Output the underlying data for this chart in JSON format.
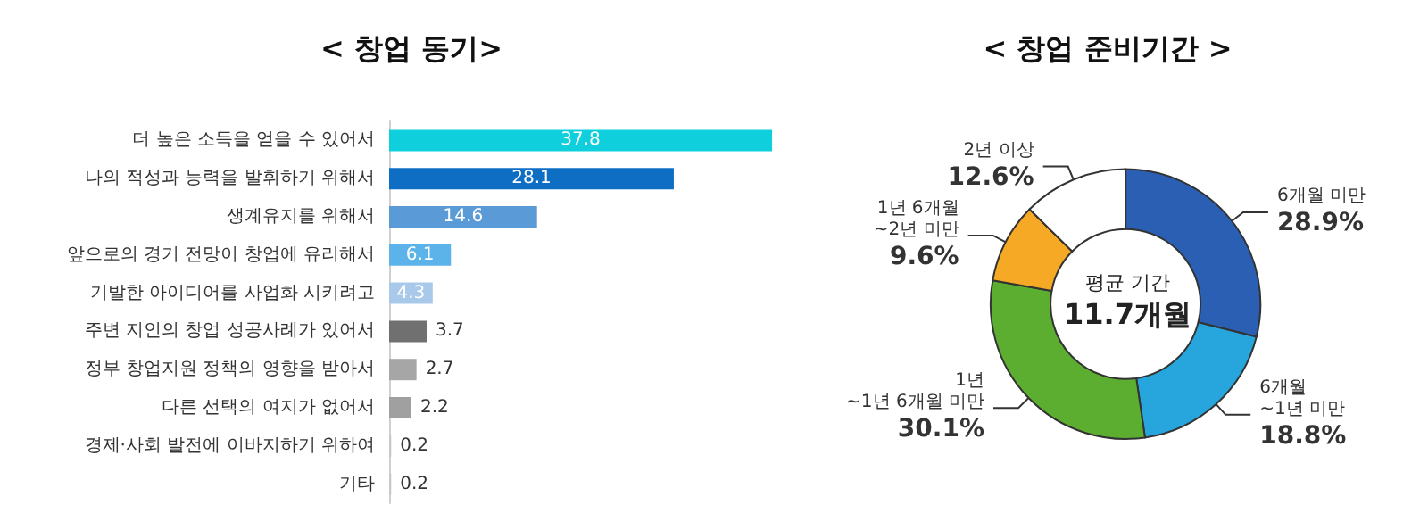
{
  "chart_data": [
    {
      "type": "bar",
      "title": "< 창업 동기>",
      "orientation": "horizontal",
      "data_labels": true,
      "categories": [
        "더 높은 소득을 얻을 수 있어서",
        "나의 적성과 능력을 발휘하기 위해서",
        "생계유지를 위해서",
        "앞으로의 경기 전망이 창업에 유리해서",
        "기발한 아이디어를 사업화 시키려고",
        "주변 지인의 창업 성공사례가 있어서",
        "정부 창업지원 정책의 영향을 받아서",
        "다른 선택의 여지가 없어서",
        "경제·사회 발전에 이바지하기 위하여",
        "기타"
      ],
      "values": [
        37.8,
        28.1,
        14.6,
        6.1,
        4.3,
        3.7,
        2.7,
        2.2,
        0.2,
        0.2
      ],
      "colors": [
        "#0fcfdc",
        "#0e6ec4",
        "#5a9ad6",
        "#5cb3ea",
        "#a8c9e9",
        "#707070",
        "#a6a6a6",
        "#a0a0a0",
        "#c8c8c8",
        "#c8c8c8"
      ]
    },
    {
      "type": "donut",
      "title": "< 창업 준비기간 >",
      "categories": [
        "6개월 미만",
        "6개월\n~1년 미만",
        "1년\n~1년 6개월 미만",
        "1년 6개월\n~2년 미만",
        "2년 이상"
      ],
      "values": [
        28.9,
        18.8,
        30.1,
        9.6,
        12.6
      ],
      "value_labels": [
        "28.9%",
        "18.8%",
        "30.1%",
        "9.6%",
        "12.6%"
      ],
      "colors": [
        "#2b5fb4",
        "#27a5dd",
        "#5cae30",
        "#f6a925",
        "#ffffff"
      ],
      "annotations": [
        "평균 기간",
        "11.7개월"
      ]
    }
  ]
}
